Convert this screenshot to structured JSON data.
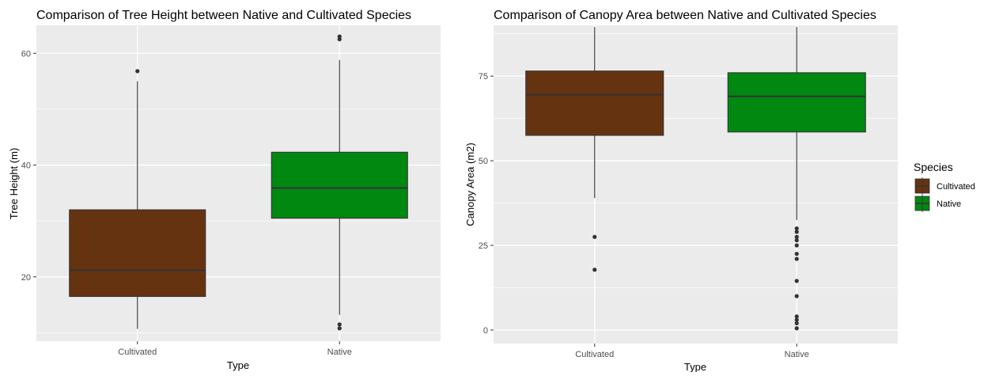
{
  "chart_data": [
    {
      "type": "box",
      "title": "Comparison of Tree Height between Native and Cultivated Species",
      "xlabel": "Type",
      "ylabel": "Tree Height (m)",
      "categories": [
        "Cultivated",
        "Native"
      ],
      "ylim": [
        8.5,
        65
      ],
      "yticks": [
        20,
        40,
        60
      ],
      "grid": true,
      "boxes": [
        {
          "category": "Cultivated",
          "species": "Cultivated",
          "whisker_low": 10.7,
          "q1": 16.5,
          "median": 21.2,
          "q3": 32.0,
          "whisker_high": 55.0,
          "outliers": [
            56.8
          ]
        },
        {
          "category": "Native",
          "species": "Native",
          "whisker_low": 13.2,
          "q1": 30.5,
          "median": 35.9,
          "q3": 42.3,
          "whisker_high": 58.8,
          "outliers": [
            63.0,
            62.5,
            11.5,
            10.8
          ]
        }
      ]
    },
    {
      "type": "box",
      "title": "Comparison of Canopy Area between Native and Cultivated Species",
      "xlabel": "Type",
      "ylabel": "Canopy Area (m2)",
      "categories": [
        "Cultivated",
        "Native"
      ],
      "ylim": [
        -4,
        90
      ],
      "yticks": [
        0,
        25,
        50,
        75
      ],
      "grid": true,
      "boxes": [
        {
          "category": "Cultivated",
          "species": "Cultivated",
          "whisker_low": 39.0,
          "q1": 57.5,
          "median": 69.5,
          "q3": 76.5,
          "whisker_high": 89.5,
          "outliers": [
            27.5,
            17.8
          ]
        },
        {
          "category": "Native",
          "species": "Native",
          "whisker_low": 32.5,
          "q1": 58.5,
          "median": 69.0,
          "q3": 76.0,
          "whisker_high": 89.5,
          "outliers": [
            30.0,
            29.0,
            27.5,
            26.5,
            25.0,
            22.5,
            21.0,
            14.5,
            10.0,
            4.0,
            3.0,
            2.0,
            0.5
          ]
        }
      ]
    }
  ],
  "legend": {
    "title": "Species",
    "placement": "right",
    "items": [
      {
        "label": "Cultivated",
        "color": "#663311"
      },
      {
        "label": "Native",
        "color": "#008811"
      }
    ]
  },
  "colors": {
    "panel_bg": "#ebebeb",
    "grid_major": "#ffffff",
    "box_line": "#333333",
    "Cultivated": "#663311",
    "Native": "#008811"
  }
}
